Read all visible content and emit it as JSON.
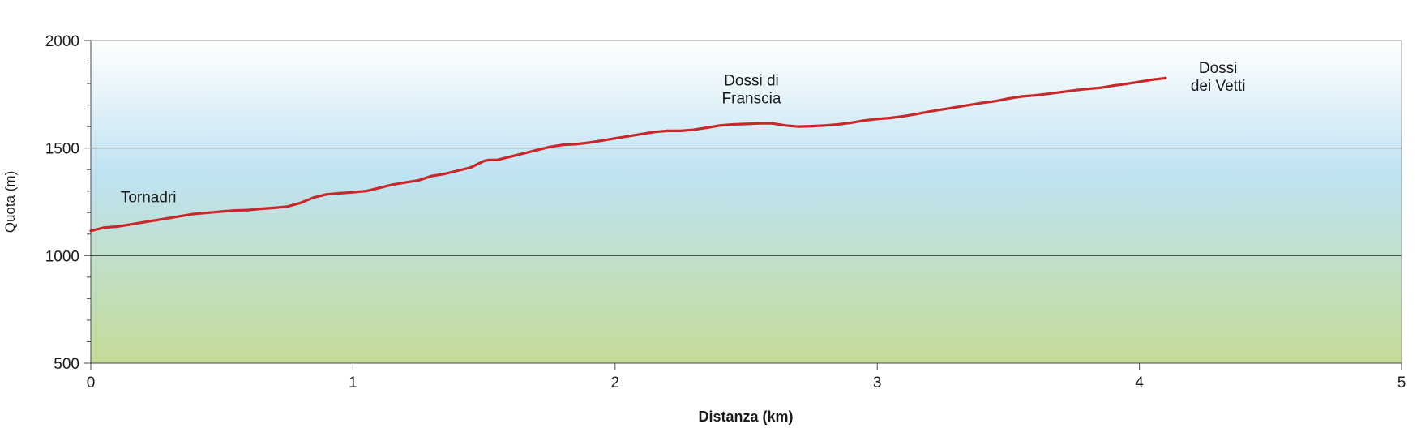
{
  "chart_data": {
    "type": "line",
    "xlabel": "Distanza (km)",
    "ylabel": "Quota (m)",
    "xlim": [
      0,
      5
    ],
    "ylim": [
      500,
      2000
    ],
    "x_ticks": [
      "0",
      "1",
      "2",
      "3",
      "4",
      "5"
    ],
    "y_ticks": [
      "500",
      "1000",
      "1500",
      "2000"
    ],
    "gridlines_y": [
      1000,
      1500
    ],
    "background_gradient": {
      "top": "#ffffff",
      "middle": "#bfe2f2",
      "bottom": "#c4dc98"
    },
    "line_color": "#c8282a",
    "series": [
      {
        "x": [
          0,
          0.05,
          0.1,
          0.15,
          0.2,
          0.25,
          0.3,
          0.35,
          0.4,
          0.45,
          0.5,
          0.55,
          0.6,
          0.65,
          0.7,
          0.75,
          0.8,
          0.85,
          0.9,
          0.95,
          1.0,
          1.05,
          1.1,
          1.15,
          1.2,
          1.25,
          1.3,
          1.35,
          1.4,
          1.45,
          1.5,
          1.52,
          1.55,
          1.6,
          1.65,
          1.7,
          1.75,
          1.8,
          1.85,
          1.9,
          1.95,
          2.0,
          2.05,
          2.1,
          2.15,
          2.2,
          2.25,
          2.3,
          2.35,
          2.4,
          2.45,
          2.5,
          2.55,
          2.6,
          2.65,
          2.7,
          2.75,
          2.8,
          2.85,
          2.9,
          2.95,
          3.0,
          3.05,
          3.1,
          3.15,
          3.2,
          3.25,
          3.3,
          3.35,
          3.4,
          3.45,
          3.5,
          3.55,
          3.6,
          3.65,
          3.7,
          3.75,
          3.8,
          3.85,
          3.9,
          3.95,
          4.0,
          4.05,
          4.1
        ],
        "y": [
          1115,
          1130,
          1135,
          1145,
          1155,
          1165,
          1175,
          1185,
          1195,
          1200,
          1205,
          1210,
          1212,
          1218,
          1222,
          1228,
          1245,
          1270,
          1285,
          1290,
          1295,
          1300,
          1315,
          1330,
          1340,
          1350,
          1370,
          1380,
          1395,
          1410,
          1440,
          1445,
          1445,
          1460,
          1475,
          1490,
          1505,
          1515,
          1518,
          1525,
          1535,
          1545,
          1555,
          1565,
          1575,
          1580,
          1580,
          1585,
          1595,
          1605,
          1610,
          1612,
          1615,
          1615,
          1605,
          1600,
          1602,
          1605,
          1610,
          1618,
          1628,
          1635,
          1640,
          1648,
          1658,
          1670,
          1680,
          1690,
          1700,
          1710,
          1718,
          1730,
          1740,
          1745,
          1752,
          1760,
          1768,
          1775,
          1780,
          1790,
          1798,
          1808,
          1818,
          1825
        ]
      }
    ],
    "annotations": [
      {
        "lines": [
          "Tornadri"
        ],
        "x": 0.22,
        "y": 1275
      },
      {
        "lines": [
          "Dossi di",
          "Franscia"
        ],
        "x": 2.52,
        "y": 1775
      },
      {
        "lines": [
          "Dossi",
          "dei Vetti"
        ],
        "x": 4.3,
        "y": 1835
      }
    ]
  }
}
